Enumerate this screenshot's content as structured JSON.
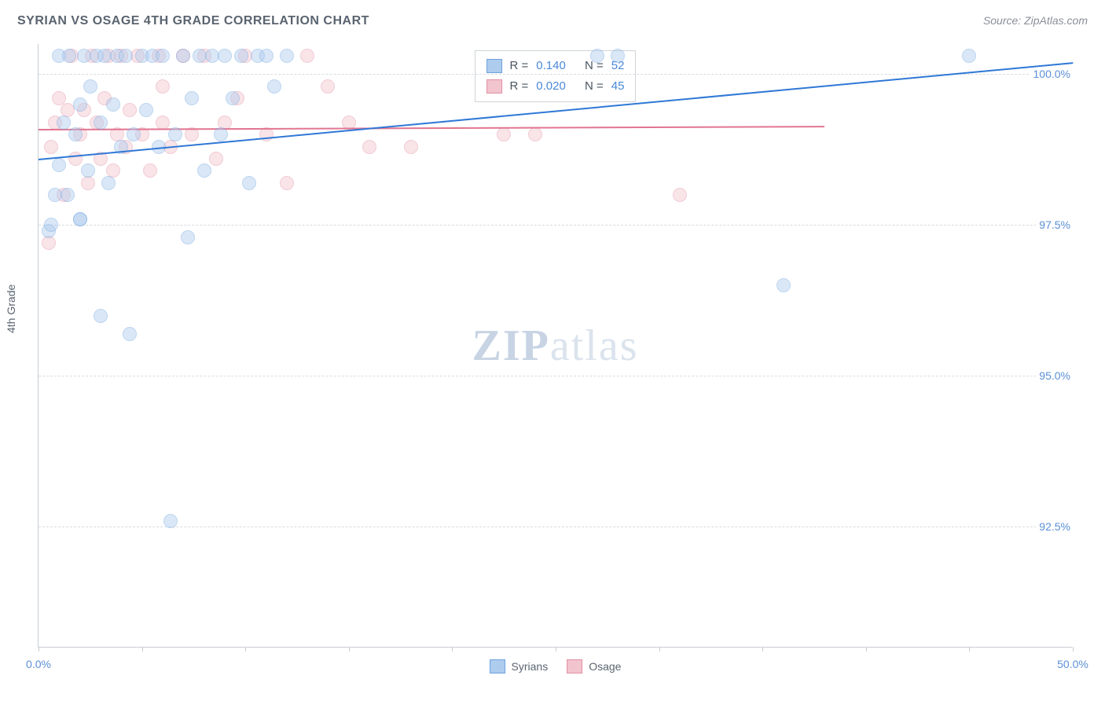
{
  "header": {
    "title": "SYRIAN VS OSAGE 4TH GRADE CORRELATION CHART",
    "source": "Source: ZipAtlas.com"
  },
  "watermark": {
    "bold": "ZIP",
    "light": "atlas"
  },
  "chart": {
    "type": "scatter",
    "background_color": "#ffffff",
    "grid_color": "#d8dce0",
    "axis_color": "#c8ccd0",
    "point_radius": 9,
    "point_opacity": 0.45,
    "xlim": [
      0,
      50
    ],
    "ylim": [
      90.5,
      100.5
    ],
    "x_ticks": [
      0,
      5,
      10,
      15,
      20,
      25,
      30,
      35,
      40,
      45,
      50
    ],
    "x_tick_labels": {
      "0": "0.0%",
      "50": "50.0%"
    },
    "y_ticks": [
      92.5,
      95.0,
      97.5,
      100.0
    ],
    "y_tick_labels": [
      "92.5%",
      "95.0%",
      "97.5%",
      "100.0%"
    ],
    "y_axis_label": "4th Grade",
    "series": {
      "syrians": {
        "label": "Syrians",
        "color_fill": "#aeccee",
        "color_stroke": "#6fa3e0",
        "trend_color": "#2f78d6",
        "r_value": "0.140",
        "n_value": "52",
        "trend": {
          "x1": 0,
          "y1": 98.6,
          "x2": 50,
          "y2": 100.2
        },
        "points": [
          [
            0.5,
            97.4
          ],
          [
            0.6,
            97.5
          ],
          [
            0.8,
            98.0
          ],
          [
            1.0,
            98.5
          ],
          [
            1.0,
            100.3
          ],
          [
            1.2,
            99.2
          ],
          [
            1.4,
            98.0
          ],
          [
            1.5,
            100.3
          ],
          [
            1.8,
            99.0
          ],
          [
            2.0,
            99.5
          ],
          [
            2.0,
            97.6
          ],
          [
            2.2,
            100.3
          ],
          [
            2.4,
            98.4
          ],
          [
            2.5,
            99.8
          ],
          [
            2.8,
            100.3
          ],
          [
            3.0,
            99.2
          ],
          [
            3.0,
            96.0
          ],
          [
            3.2,
            100.3
          ],
          [
            3.4,
            98.2
          ],
          [
            3.6,
            99.5
          ],
          [
            3.8,
            100.3
          ],
          [
            4.0,
            98.8
          ],
          [
            4.2,
            100.3
          ],
          [
            4.4,
            95.7
          ],
          [
            4.6,
            99.0
          ],
          [
            5.0,
            100.3
          ],
          [
            5.2,
            99.4
          ],
          [
            5.5,
            100.3
          ],
          [
            5.8,
            98.8
          ],
          [
            6.0,
            100.3
          ],
          [
            6.4,
            92.6
          ],
          [
            6.6,
            99.0
          ],
          [
            7.0,
            100.3
          ],
          [
            7.2,
            97.3
          ],
          [
            7.4,
            99.6
          ],
          [
            7.8,
            100.3
          ],
          [
            8.0,
            98.4
          ],
          [
            8.4,
            100.3
          ],
          [
            8.8,
            99.0
          ],
          [
            9.0,
            100.3
          ],
          [
            9.4,
            99.6
          ],
          [
            9.8,
            100.3
          ],
          [
            10.2,
            98.2
          ],
          [
            10.6,
            100.3
          ],
          [
            11.0,
            100.3
          ],
          [
            11.4,
            99.8
          ],
          [
            12.0,
            100.3
          ],
          [
            27.0,
            100.3
          ],
          [
            28.0,
            100.3
          ],
          [
            36.0,
            96.5
          ],
          [
            45.0,
            100.3
          ],
          [
            2.0,
            97.6
          ]
        ]
      },
      "osage": {
        "label": "Osage",
        "color_fill": "#f2c4ce",
        "color_stroke": "#e290a4",
        "trend_color": "#e27590",
        "r_value": "0.020",
        "n_value": "45",
        "trend": {
          "x1": 0,
          "y1": 99.1,
          "x2": 38,
          "y2": 99.15
        },
        "points": [
          [
            0.5,
            97.2
          ],
          [
            0.6,
            98.8
          ],
          [
            0.8,
            99.2
          ],
          [
            1.0,
            99.6
          ],
          [
            1.2,
            98.0
          ],
          [
            1.4,
            99.4
          ],
          [
            1.6,
            100.3
          ],
          [
            1.8,
            98.6
          ],
          [
            2.0,
            99.0
          ],
          [
            2.2,
            99.4
          ],
          [
            2.4,
            98.2
          ],
          [
            2.6,
            100.3
          ],
          [
            2.8,
            99.2
          ],
          [
            3.0,
            98.6
          ],
          [
            3.2,
            99.6
          ],
          [
            3.4,
            100.3
          ],
          [
            3.6,
            98.4
          ],
          [
            3.8,
            99.0
          ],
          [
            4.0,
            100.3
          ],
          [
            4.2,
            98.8
          ],
          [
            4.4,
            99.4
          ],
          [
            4.8,
            100.3
          ],
          [
            5.0,
            99.0
          ],
          [
            5.4,
            98.4
          ],
          [
            5.8,
            100.3
          ],
          [
            6.0,
            99.2
          ],
          [
            6.4,
            98.8
          ],
          [
            7.0,
            100.3
          ],
          [
            7.4,
            99.0
          ],
          [
            8.0,
            100.3
          ],
          [
            8.6,
            98.6
          ],
          [
            9.0,
            99.2
          ],
          [
            9.6,
            99.6
          ],
          [
            10.0,
            100.3
          ],
          [
            11.0,
            99.0
          ],
          [
            12.0,
            98.2
          ],
          [
            13.0,
            100.3
          ],
          [
            14.0,
            99.8
          ],
          [
            15.0,
            99.2
          ],
          [
            16.0,
            98.8
          ],
          [
            18.0,
            98.8
          ],
          [
            22.5,
            99.0
          ],
          [
            24.0,
            99.0
          ],
          [
            31.0,
            98.0
          ],
          [
            6.0,
            99.8
          ]
        ]
      }
    },
    "r_legend_labels": {
      "r": "R =",
      "n": "N ="
    }
  }
}
